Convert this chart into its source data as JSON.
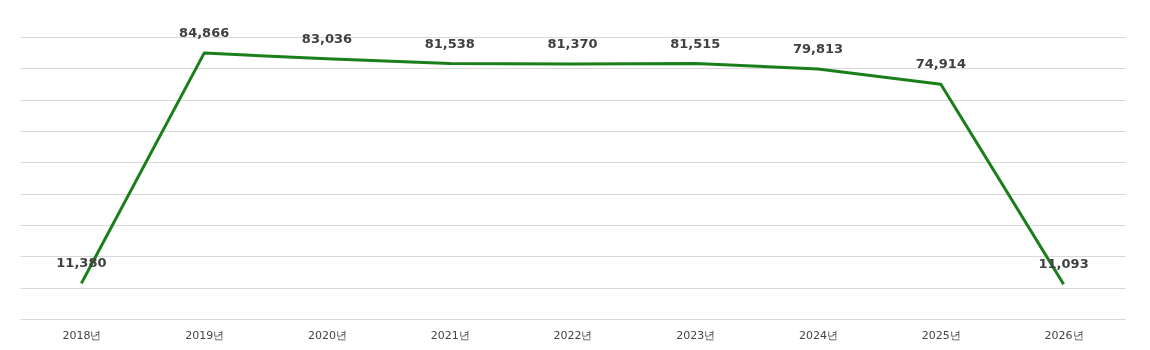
{
  "chart_data": {
    "type": "line",
    "categories": [
      "2018년",
      "2019년",
      "2020년",
      "2021년",
      "2022년",
      "2023년",
      "2024년",
      "2025년",
      "2026년"
    ],
    "series": [
      {
        "color": "#1a7f1a",
        "values": [
          11380,
          84866,
          83036,
          81538,
          81370,
          81515,
          79813,
          74914,
          11093
        ],
        "value_labels": [
          "11,380",
          "84,866",
          "83,036",
          "81,538",
          "81,370",
          "81,515",
          "79,813",
          "74,914",
          "11,093"
        ]
      }
    ],
    "tick_labels": "x",
    "grid": "y",
    "marker": "none",
    "line_style": "solid"
  }
}
